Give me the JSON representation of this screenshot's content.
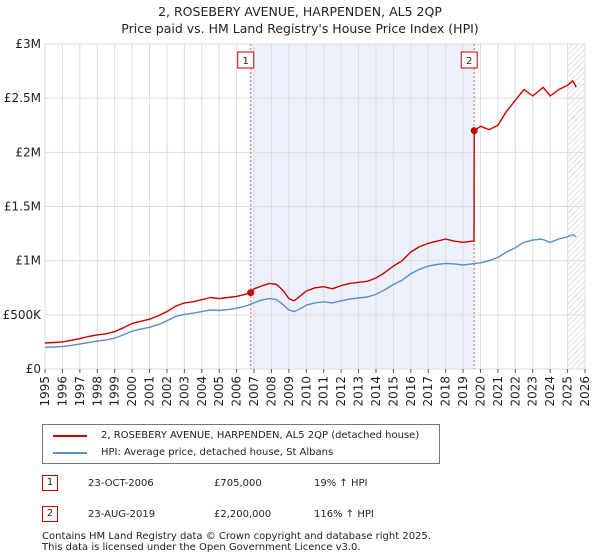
{
  "chart_data": {
    "type": "line",
    "title": "2, ROSEBERY AVENUE, HARPENDEN, AL5 2QP",
    "subtitle": "Price paid vs. HM Land Registry's House Price Index (HPI)",
    "xlabel": "",
    "ylabel": "",
    "xlim": [
      1995,
      2026
    ],
    "ylim": [
      0,
      3000000
    ],
    "y_ticks": [
      {
        "value": 0,
        "label": "£0"
      },
      {
        "value": 500000,
        "label": "£500K"
      },
      {
        "value": 1000000,
        "label": "£1M"
      },
      {
        "value": 1500000,
        "label": "£1.5M"
      },
      {
        "value": 2000000,
        "label": "£2M"
      },
      {
        "value": 2500000,
        "label": "£2.5M"
      },
      {
        "value": 3000000,
        "label": "£3M"
      }
    ],
    "x_ticks": [
      "1995",
      "1996",
      "1997",
      "1998",
      "1999",
      "2000",
      "2001",
      "2002",
      "2003",
      "2004",
      "2005",
      "2006",
      "2007",
      "2008",
      "2009",
      "2010",
      "2011",
      "2012",
      "2013",
      "2014",
      "2015",
      "2016",
      "2017",
      "2018",
      "2019",
      "2020",
      "2021",
      "2022",
      "2023",
      "2024",
      "2025",
      "2026"
    ],
    "grid": true,
    "shaded_period": [
      2006.81,
      2019.64
    ],
    "hatched_after": 2025.0,
    "series": [
      {
        "name": "2, ROSEBERY AVENUE, HARPENDEN, AL5 2QP (detached house)",
        "color": "#cc0000",
        "x": [
          1995.0,
          1995.5,
          1996.0,
          1996.5,
          1997.0,
          1997.5,
          1998.0,
          1998.5,
          1999.0,
          1999.5,
          2000.0,
          2000.5,
          2001.0,
          2001.5,
          2002.0,
          2002.5,
          2003.0,
          2003.5,
          2004.0,
          2004.5,
          2005.0,
          2005.5,
          2006.0,
          2006.5,
          2006.81,
          2007.0,
          2007.5,
          2007.9,
          2008.3,
          2008.7,
          2009.0,
          2009.3,
          2009.7,
          2010.0,
          2010.5,
          2011.0,
          2011.5,
          2012.0,
          2012.5,
          2013.0,
          2013.5,
          2014.0,
          2014.5,
          2015.0,
          2015.5,
          2016.0,
          2016.5,
          2017.0,
          2017.5,
          2018.0,
          2018.5,
          2019.0,
          2019.5,
          2019.63,
          2019.64,
          2020.0,
          2020.5,
          2021.0,
          2021.5,
          2022.0,
          2022.5,
          2023.0,
          2023.3,
          2023.6,
          2024.0,
          2024.5,
          2025.0,
          2025.3,
          2025.5
        ],
        "y": [
          240000,
          245000,
          250000,
          265000,
          280000,
          300000,
          315000,
          325000,
          345000,
          380000,
          420000,
          440000,
          460000,
          490000,
          530000,
          580000,
          610000,
          620000,
          640000,
          660000,
          650000,
          660000,
          670000,
          690000,
          705000,
          740000,
          770000,
          790000,
          780000,
          720000,
          650000,
          630000,
          680000,
          720000,
          750000,
          760000,
          740000,
          770000,
          790000,
          800000,
          810000,
          840000,
          890000,
          950000,
          1000000,
          1080000,
          1130000,
          1160000,
          1180000,
          1200000,
          1180000,
          1170000,
          1180000,
          1180000,
          2200000,
          2240000,
          2210000,
          2250000,
          2380000,
          2480000,
          2580000,
          2520000,
          2560000,
          2600000,
          2520000,
          2580000,
          2620000,
          2660000,
          2600000
        ]
      },
      {
        "name": "HPI: Average price, detached house, St Albans",
        "color": "#5b8fc9",
        "x": [
          1995.0,
          1995.5,
          1996.0,
          1996.5,
          1997.0,
          1997.5,
          1998.0,
          1998.5,
          1999.0,
          1999.5,
          2000.0,
          2000.5,
          2001.0,
          2001.5,
          2002.0,
          2002.5,
          2003.0,
          2003.5,
          2004.0,
          2004.5,
          2005.0,
          2005.5,
          2006.0,
          2006.5,
          2007.0,
          2007.5,
          2007.9,
          2008.3,
          2008.7,
          2009.0,
          2009.3,
          2009.7,
          2010.0,
          2010.5,
          2011.0,
          2011.5,
          2012.0,
          2012.5,
          2013.0,
          2013.5,
          2014.0,
          2014.5,
          2015.0,
          2015.5,
          2016.0,
          2016.5,
          2017.0,
          2017.5,
          2018.0,
          2018.5,
          2019.0,
          2019.5,
          2020.0,
          2020.5,
          2021.0,
          2021.5,
          2022.0,
          2022.5,
          2023.0,
          2023.5,
          2024.0,
          2024.5,
          2025.0,
          2025.3,
          2025.5
        ],
        "y": [
          200000,
          203000,
          208000,
          218000,
          230000,
          245000,
          258000,
          268000,
          285000,
          315000,
          350000,
          368000,
          385000,
          410000,
          445000,
          485000,
          505000,
          515000,
          530000,
          545000,
          540000,
          548000,
          560000,
          580000,
          610000,
          640000,
          650000,
          640000,
          590000,
          545000,
          530000,
          560000,
          590000,
          610000,
          620000,
          610000,
          630000,
          645000,
          655000,
          665000,
          690000,
          730000,
          780000,
          820000,
          880000,
          920000,
          950000,
          965000,
          975000,
          970000,
          960000,
          970000,
          980000,
          1000000,
          1030000,
          1080000,
          1120000,
          1170000,
          1190000,
          1200000,
          1170000,
          1200000,
          1220000,
          1240000,
          1220000
        ]
      }
    ],
    "sales": [
      {
        "label": "1",
        "x": 2006.81,
        "y": 705000
      },
      {
        "label": "2",
        "x": 2019.64,
        "y": 2200000
      }
    ]
  },
  "legend": {
    "items": [
      {
        "label": "2, ROSEBERY AVENUE, HARPENDEN, AL5 2QP (detached house)",
        "color": "#cc0000"
      },
      {
        "label": "HPI: Average price, detached house, St Albans",
        "color": "#5b8fc9"
      }
    ]
  },
  "sales_table": [
    {
      "num": "1",
      "date": "23-OCT-2006",
      "price": "£705,000",
      "hpi": "19% ↑ HPI"
    },
    {
      "num": "2",
      "date": "23-AUG-2019",
      "price": "£2,200,000",
      "hpi": "116% ↑ HPI"
    }
  ],
  "footer": {
    "line1": "Contains HM Land Registry data © Crown copyright and database right 2025.",
    "line2": "This data is licensed under the Open Government Licence v3.0."
  }
}
